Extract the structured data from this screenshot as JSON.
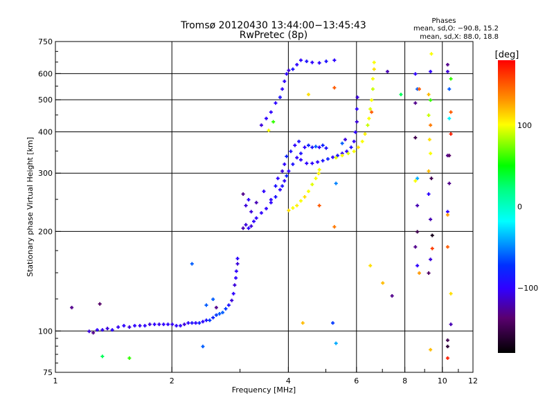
{
  "chart_data": {
    "type": "scatter",
    "title": "Tromsø 20120430 13:44:00−13:45:43",
    "subtitle": "RwPretec (8p)",
    "phases_box": {
      "heading": "Phases",
      "line_o": "mean, sd,O: −90.8, 15.2",
      "line_x": "mean, sd,X:  88.0, 18.8"
    },
    "xlabel": "Frequency [MHz]",
    "ylabel": "Stationary phase Virtual Height [km]",
    "xscale": "log",
    "yscale": "log",
    "xlim": [
      1,
      12
    ],
    "ylim": [
      75,
      750
    ],
    "xticks": [
      1,
      2,
      4,
      6,
      8,
      10,
      12
    ],
    "xtick_labels": [
      "1",
      "2",
      "4",
      "6",
      "8",
      "10",
      "12"
    ],
    "yticks": [
      75,
      100,
      200,
      300,
      400,
      500,
      600,
      750
    ],
    "ytick_labels": [
      "75",
      "100",
      "200",
      "300",
      "400",
      "500",
      "600",
      "750"
    ],
    "xgrid": [
      2,
      4,
      6,
      8,
      10
    ],
    "ygrid": [
      100,
      200,
      300,
      400,
      500,
      600
    ],
    "colorbar": {
      "label": "[deg]",
      "range": [
        -180,
        180
      ],
      "ticks": [
        100,
        0,
        -100
      ],
      "tick_labels": [
        "100",
        "0",
        "−100"
      ]
    },
    "point_fields": [
      "frequency_MHz",
      "height_km",
      "phase_deg"
    ],
    "points": [
      [
        1.22,
        100,
        -110
      ],
      [
        1.25,
        99,
        -130
      ],
      [
        1.28,
        101,
        -100
      ],
      [
        1.32,
        101,
        -105
      ],
      [
        1.36,
        102,
        -110
      ],
      [
        1.4,
        101,
        -100
      ],
      [
        1.45,
        103,
        -105
      ],
      [
        1.5,
        104,
        -100
      ],
      [
        1.55,
        103,
        -110
      ],
      [
        1.6,
        104,
        -100
      ],
      [
        1.65,
        104,
        -105
      ],
      [
        1.7,
        104,
        -100
      ],
      [
        1.75,
        105,
        -110
      ],
      [
        1.8,
        105,
        -100
      ],
      [
        1.85,
        105,
        -105
      ],
      [
        1.9,
        105,
        -100
      ],
      [
        1.95,
        105,
        -100
      ],
      [
        2.0,
        105,
        -105
      ],
      [
        2.05,
        104,
        -100
      ],
      [
        2.1,
        104,
        -100
      ],
      [
        2.15,
        105,
        -110
      ],
      [
        2.2,
        106,
        -100
      ],
      [
        2.25,
        106,
        -90
      ],
      [
        2.3,
        106,
        -100
      ],
      [
        2.35,
        106,
        -80
      ],
      [
        2.4,
        107,
        -100
      ],
      [
        2.45,
        108,
        -90
      ],
      [
        2.5,
        108,
        -70
      ],
      [
        2.55,
        110,
        -80
      ],
      [
        2.6,
        112,
        -70
      ],
      [
        2.65,
        113,
        -60
      ],
      [
        2.7,
        114,
        -60
      ],
      [
        2.75,
        117,
        -70
      ],
      [
        2.8,
        120,
        -90
      ],
      [
        2.85,
        124,
        -110
      ],
      [
        2.88,
        130,
        -100
      ],
      [
        2.9,
        138,
        -110
      ],
      [
        2.92,
        145,
        -100
      ],
      [
        2.93,
        152,
        -100
      ],
      [
        2.95,
        160,
        -110
      ],
      [
        2.95,
        166,
        -100
      ],
      [
        2.45,
        120,
        -60
      ],
      [
        2.55,
        125,
        -60
      ],
      [
        2.6,
        118,
        -130
      ],
      [
        2.25,
        160,
        -60
      ],
      [
        1.1,
        118,
        -130
      ],
      [
        1.3,
        121,
        -140
      ],
      [
        2.4,
        90,
        -60
      ],
      [
        1.32,
        84,
        30
      ],
      [
        1.55,
        83,
        60
      ],
      [
        3.05,
        205,
        -120
      ],
      [
        3.1,
        210,
        -110
      ],
      [
        3.15,
        205,
        -100
      ],
      [
        3.2,
        208,
        -110
      ],
      [
        3.25,
        215,
        -100
      ],
      [
        3.3,
        220,
        -100
      ],
      [
        3.4,
        228,
        -100
      ],
      [
        3.5,
        235,
        -100
      ],
      [
        3.6,
        245,
        -100
      ],
      [
        3.7,
        255,
        -90
      ],
      [
        3.8,
        268,
        -100
      ],
      [
        3.85,
        275,
        -90
      ],
      [
        3.9,
        285,
        -100
      ],
      [
        3.95,
        295,
        -80
      ],
      [
        4.0,
        305,
        -100
      ],
      [
        4.1,
        320,
        -90
      ],
      [
        4.2,
        335,
        -100
      ],
      [
        4.3,
        345,
        -90
      ],
      [
        4.4,
        360,
        -100
      ],
      [
        4.5,
        365,
        -80
      ],
      [
        4.6,
        360,
        -90
      ],
      [
        4.7,
        362,
        -60
      ],
      [
        4.8,
        360,
        -100
      ],
      [
        4.9,
        365,
        -80
      ],
      [
        5.0,
        358,
        -90
      ],
      [
        4.3,
        330,
        -100
      ],
      [
        4.45,
        322,
        -100
      ],
      [
        4.6,
        322,
        -100
      ],
      [
        4.75,
        325,
        -100
      ],
      [
        4.9,
        328,
        -90
      ],
      [
        5.05,
        332,
        -80
      ],
      [
        5.2,
        336,
        -100
      ],
      [
        5.35,
        340,
        -90
      ],
      [
        5.5,
        345,
        -100
      ],
      [
        5.65,
        350,
        -100
      ],
      [
        5.8,
        360,
        -90
      ],
      [
        5.9,
        375,
        -100
      ],
      [
        5.95,
        400,
        -100
      ],
      [
        6.0,
        430,
        -110
      ],
      [
        6.0,
        470,
        -100
      ],
      [
        6.02,
        510,
        -110
      ],
      [
        5.6,
        380,
        -110
      ],
      [
        5.5,
        370,
        -60
      ],
      [
        3.05,
        260,
        -130
      ],
      [
        3.1,
        240,
        -110
      ],
      [
        3.15,
        250,
        -100
      ],
      [
        3.2,
        230,
        -110
      ],
      [
        3.3,
        245,
        -120
      ],
      [
        3.45,
        265,
        -100
      ],
      [
        3.6,
        250,
        -100
      ],
      [
        3.7,
        275,
        -90
      ],
      [
        3.75,
        290,
        -100
      ],
      [
        3.85,
        305,
        -110
      ],
      [
        3.9,
        320,
        -100
      ],
      [
        3.95,
        338,
        -80
      ],
      [
        4.05,
        350,
        -90
      ],
      [
        4.15,
        365,
        -100
      ],
      [
        4.25,
        375,
        -90
      ],
      [
        3.4,
        420,
        -110
      ],
      [
        3.5,
        440,
        -100
      ],
      [
        3.6,
        460,
        -100
      ],
      [
        3.7,
        490,
        -100
      ],
      [
        3.8,
        510,
        -90
      ],
      [
        3.85,
        540,
        -100
      ],
      [
        3.9,
        570,
        -100
      ],
      [
        3.95,
        600,
        -100
      ],
      [
        4.0,
        615,
        -110
      ],
      [
        4.1,
        620,
        -90
      ],
      [
        4.2,
        640,
        -100
      ],
      [
        4.3,
        660,
        -100
      ],
      [
        4.45,
        655,
        -90
      ],
      [
        4.6,
        650,
        -100
      ],
      [
        4.8,
        648,
        -100
      ],
      [
        5.0,
        655,
        -90
      ],
      [
        5.25,
        660,
        -100
      ],
      [
        3.55,
        405,
        100
      ],
      [
        3.65,
        430,
        60
      ],
      [
        4.0,
        232,
        110
      ],
      [
        4.1,
        236,
        100
      ],
      [
        4.2,
        240,
        105
      ],
      [
        4.3,
        248,
        100
      ],
      [
        4.4,
        255,
        110
      ],
      [
        4.5,
        265,
        100
      ],
      [
        4.6,
        278,
        95
      ],
      [
        4.7,
        290,
        100
      ],
      [
        4.78,
        300,
        105
      ],
      [
        4.8,
        308,
        100
      ],
      [
        5.3,
        335,
        95
      ],
      [
        5.5,
        340,
        100
      ],
      [
        5.7,
        345,
        95
      ],
      [
        5.9,
        350,
        100
      ],
      [
        6.05,
        360,
        110
      ],
      [
        6.2,
        375,
        100
      ],
      [
        6.3,
        395,
        105
      ],
      [
        6.4,
        420,
        90
      ],
      [
        6.45,
        440,
        100
      ],
      [
        6.5,
        470,
        95
      ],
      [
        6.55,
        500,
        100
      ],
      [
        6.6,
        540,
        90
      ],
      [
        6.6,
        580,
        100
      ],
      [
        6.65,
        620,
        110
      ],
      [
        6.65,
        650,
        100
      ],
      [
        6.55,
        460,
        150
      ],
      [
        4.5,
        520,
        110
      ],
      [
        4.8,
        240,
        150
      ],
      [
        5.25,
        545,
        150
      ],
      [
        5.25,
        207,
        140
      ],
      [
        5.3,
        280,
        -50
      ],
      [
        4.35,
        106,
        120
      ],
      [
        5.2,
        106,
        -70
      ],
      [
        5.3,
        92,
        -40
      ],
      [
        6.5,
        158,
        110
      ],
      [
        7.0,
        140,
        120
      ],
      [
        7.4,
        128,
        -130
      ],
      [
        7.8,
        520,
        30
      ],
      [
        7.2,
        610,
        -120
      ],
      [
        8.5,
        600,
        -100
      ],
      [
        8.6,
        540,
        -60
      ],
      [
        8.7,
        540,
        150
      ],
      [
        8.5,
        490,
        -130
      ],
      [
        8.5,
        385,
        -150
      ],
      [
        8.6,
        290,
        -40
      ],
      [
        8.5,
        285,
        100
      ],
      [
        8.6,
        240,
        -120
      ],
      [
        8.6,
        200,
        -150
      ],
      [
        8.5,
        180,
        -130
      ],
      [
        8.6,
        158,
        -100
      ],
      [
        8.7,
        150,
        130
      ],
      [
        9.2,
        520,
        120
      ],
      [
        9.3,
        500,
        60
      ],
      [
        9.2,
        450,
        90
      ],
      [
        9.3,
        420,
        140
      ],
      [
        9.25,
        380,
        110
      ],
      [
        9.3,
        345,
        100
      ],
      [
        9.2,
        305,
        120
      ],
      [
        9.35,
        290,
        -150
      ],
      [
        9.2,
        260,
        -100
      ],
      [
        9.3,
        218,
        -120
      ],
      [
        9.4,
        195,
        -170
      ],
      [
        9.4,
        178,
        160
      ],
      [
        9.3,
        165,
        -110
      ],
      [
        9.2,
        150,
        -140
      ],
      [
        9.3,
        88,
        120
      ],
      [
        9.35,
        690,
        100
      ],
      [
        9.3,
        610,
        -100
      ],
      [
        10.3,
        640,
        -130
      ],
      [
        10.3,
        610,
        -110
      ],
      [
        10.5,
        580,
        60
      ],
      [
        10.4,
        540,
        -60
      ],
      [
        10.5,
        460,
        150
      ],
      [
        10.4,
        440,
        -20
      ],
      [
        10.5,
        395,
        170
      ],
      [
        10.3,
        340,
        -130
      ],
      [
        10.4,
        280,
        -130
      ],
      [
        10.3,
        230,
        -100
      ],
      [
        10.3,
        225,
        130
      ],
      [
        10.3,
        180,
        150
      ],
      [
        10.5,
        130,
        110
      ],
      [
        10.5,
        105,
        -120
      ],
      [
        10.3,
        94,
        -150
      ],
      [
        10.3,
        90,
        -160
      ],
      [
        10.3,
        83,
        170
      ],
      [
        10.4,
        340,
        -140
      ]
    ]
  }
}
